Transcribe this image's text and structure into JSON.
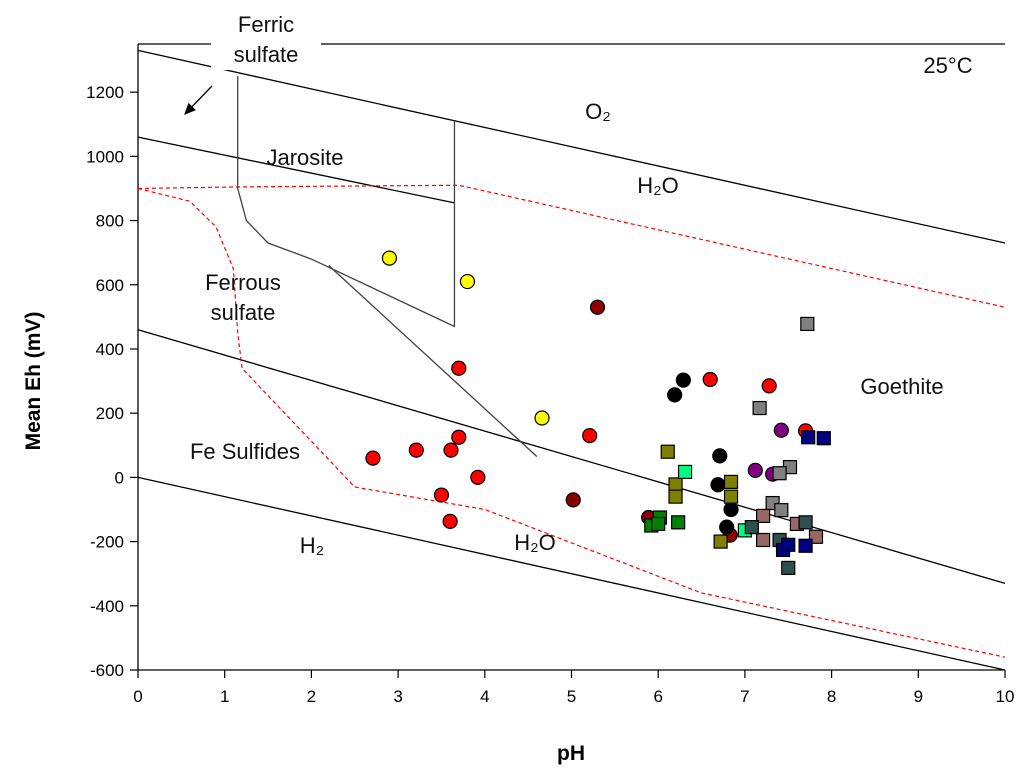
{
  "chart_data": {
    "type": "scatter",
    "x_label": "pH",
    "y_label": "Mean Eh (mV)",
    "xlim": [
      0,
      10
    ],
    "ylim": [
      -600,
      1350
    ],
    "xticks": [
      0,
      1,
      2,
      3,
      4,
      5,
      6,
      7,
      8,
      9,
      10
    ],
    "yticks": [
      -600,
      -400,
      -200,
      0,
      200,
      400,
      600,
      800,
      1000,
      1200
    ],
    "annotations": [
      "Ferric sulfate",
      "Jarosite",
      "O₂",
      "H₂O",
      "Ferrous sulfate",
      "Goethite",
      "Fe Sulfides",
      "H₂",
      "H₂O",
      "25°C"
    ],
    "lines": [
      {
        "color": "#000000",
        "style": "solid",
        "x": [
          0,
          10
        ],
        "y": [
          1330,
          730
        ]
      },
      {
        "color": "#000000",
        "style": "solid",
        "x": [
          0,
          3.65
        ],
        "y": [
          1060,
          855
        ]
      },
      {
        "color": "#000000",
        "style": "solid",
        "x": [
          0,
          10
        ],
        "y": [
          460,
          -330
        ]
      },
      {
        "color": "#000000",
        "style": "solid",
        "x": [
          0,
          10
        ],
        "y": [
          0,
          -600
        ]
      },
      {
        "color": "#ff0000",
        "style": "dashed",
        "x": [
          0,
          1.2,
          3.7,
          10
        ],
        "y": [
          900,
          905,
          910,
          530
        ]
      },
      {
        "color": "#ff0000",
        "style": "dashed",
        "x": [
          0,
          0.6,
          0.9,
          1.1,
          1.15,
          1.2,
          2.5,
          4,
          6.5,
          10
        ],
        "y": [
          900,
          860,
          780,
          650,
          450,
          340,
          -30,
          -100,
          -360,
          -560
        ]
      },
      {
        "color": "#404040",
        "style": "solid",
        "x": [
          1.15,
          1.15,
          1.25,
          1.5,
          2,
          3.65,
          3.65
        ],
        "y": [
          1250,
          900,
          800,
          730,
          680,
          470,
          1110
        ]
      },
      {
        "color": "#404040",
        "style": "solid",
        "x": [
          2.2,
          4.6
        ],
        "y": [
          660,
          65
        ]
      }
    ],
    "series": [
      {
        "color": "#ffff00",
        "marker": "circle",
        "x": [
          2.9,
          3.8,
          4.66
        ],
        "y": [
          683,
          610,
          185
        ]
      },
      {
        "color": "#ff0000",
        "marker": "circle",
        "x": [
          2.71,
          3.21,
          3.61,
          3.7,
          3.7,
          3.92,
          3.5,
          3.6,
          5.21,
          6.6,
          7.28,
          7.7
        ],
        "y": [
          60,
          85,
          85,
          340,
          125,
          0,
          -55,
          -137,
          130,
          305,
          285,
          145
        ]
      },
      {
        "color": "#8b0000",
        "marker": "circle",
        "x": [
          5.3,
          5.02,
          5.89,
          6.83
        ],
        "y": [
          530,
          -70,
          -125,
          -180
        ]
      },
      {
        "color": "#000000",
        "marker": "circle",
        "x": [
          6.19,
          6.29,
          6.71,
          6.69,
          6.84,
          6.79
        ],
        "y": [
          257,
          303,
          67,
          -23,
          -100,
          -155
        ]
      },
      {
        "color": "#800080",
        "marker": "circle",
        "x": [
          7.12,
          7.42,
          7.32
        ],
        "y": [
          22,
          147,
          10
        ]
      },
      {
        "color": "#808080",
        "marker": "square",
        "x": [
          7.72,
          7.17,
          7.52,
          7.4,
          7.32,
          7.42
        ],
        "y": [
          478,
          216,
          32,
          13,
          -80,
          -102
        ]
      },
      {
        "color": "#808000",
        "marker": "square",
        "x": [
          6.11,
          6.2,
          6.2,
          6.84,
          6.84,
          6.72
        ],
        "y": [
          80,
          -22,
          -60,
          -14,
          -60,
          -200
        ]
      },
      {
        "color": "#00ff7f",
        "marker": "square",
        "x": [
          6.31,
          7.0
        ],
        "y": [
          17,
          -165
        ]
      },
      {
        "color": "#008000",
        "marker": "square",
        "x": [
          6.02,
          5.92,
          6.0,
          6.23
        ],
        "y": [
          -125,
          -150,
          -145,
          -140
        ]
      },
      {
        "color": "#996666",
        "marker": "square",
        "x": [
          7.21,
          7.21,
          7.6,
          7.82
        ],
        "y": [
          -120,
          -195,
          -145,
          -185
        ]
      },
      {
        "color": "#2f4f4f",
        "marker": "square",
        "x": [
          7.08,
          7.4,
          7.7,
          7.5
        ],
        "y": [
          -155,
          -195,
          -140,
          -282
        ]
      },
      {
        "color": "#000080",
        "marker": "square",
        "x": [
          7.73,
          7.91,
          7.44,
          7.5,
          7.7
        ],
        "y": [
          125,
          122,
          -226,
          -210,
          -213
        ]
      }
    ]
  }
}
